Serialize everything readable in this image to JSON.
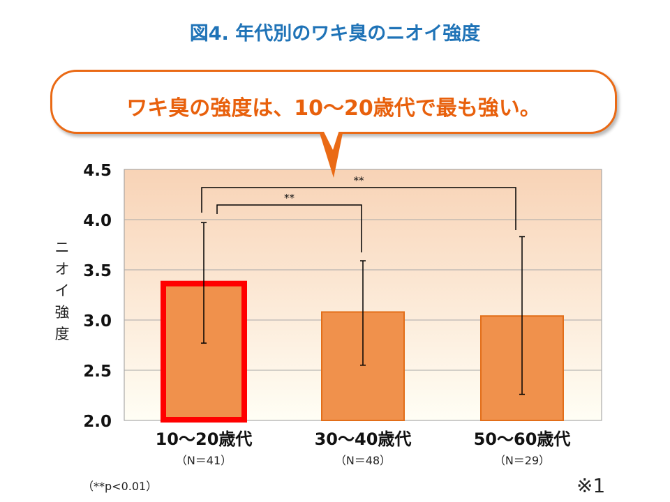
{
  "title": "図4. 年代別のワキ臭のニオイ強度",
  "callout": "ワキ臭の強度は、10～20歳代で最も強い。",
  "footnote": "（**p<0.01）",
  "reference_mark": "※1",
  "colors": {
    "title": "#1f73b7",
    "callout_text": "#e8600c",
    "callout_border": "#ea6a15",
    "bar_fill": "#f0914c",
    "bar_stroke": "#e26e19",
    "highlight_border": "#ff0000",
    "plot_bg_top": "#f8d3b6",
    "plot_bg_bottom": "#fffef5"
  },
  "chart_data": {
    "type": "bar",
    "ylabel": "ニオイ強度",
    "ylim": [
      2.0,
      4.5
    ],
    "yticks": [
      "2.0",
      "2.5",
      "3.0",
      "3.5",
      "4.0",
      "4.5"
    ],
    "grid": true,
    "categories": [
      "10～20歳代",
      "30～40歳代",
      "50～60歳代"
    ],
    "sample_sizes": [
      "（N＝41）",
      "（N＝48）",
      "（N＝29）"
    ],
    "values": [
      3.37,
      3.08,
      3.04
    ],
    "error_high": [
      3.97,
      3.59,
      3.83
    ],
    "error_low": [
      2.77,
      2.55,
      2.26
    ],
    "highlighted_category": "10～20歳代",
    "significance": [
      {
        "from": "10～20歳代",
        "to": "30～40歳代",
        "label": "**"
      },
      {
        "from": "10～20歳代",
        "to": "50～60歳代",
        "label": "**"
      }
    ]
  }
}
